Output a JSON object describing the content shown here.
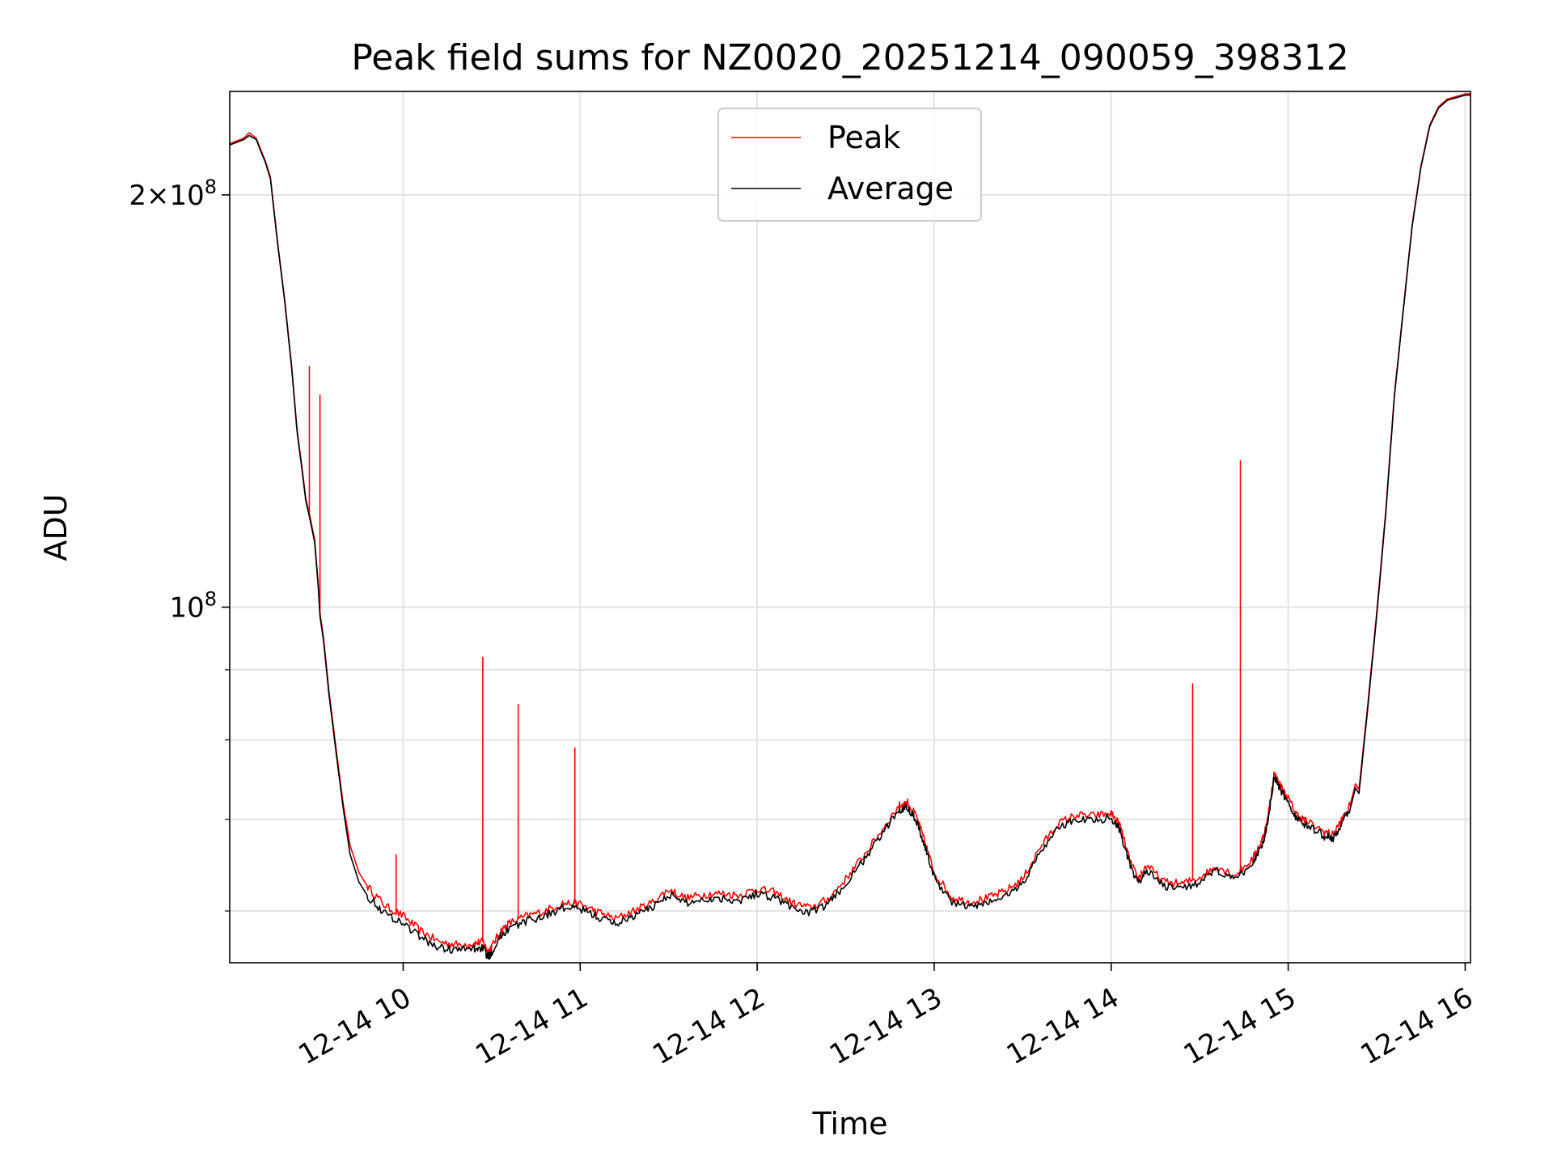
{
  "chart_data": {
    "type": "line",
    "title": "Peak field sums for NZ0020_20251214_090059_398312",
    "xlabel": "Time",
    "ylabel": "ADU",
    "yscale": "log",
    "xlim": [
      9.02,
      16.03
    ],
    "ylim": [
      55000000,
      238000000
    ],
    "grid": true,
    "legend_position": "upper center",
    "x_unit": "hours on 2025-12-14",
    "x_ticks": [
      10,
      11,
      12,
      13,
      14,
      15,
      16
    ],
    "x_tick_labels": [
      "12-14 10",
      "12-14 11",
      "12-14 12",
      "12-14 13",
      "12-14 14",
      "12-14 15",
      "12-14 16"
    ],
    "y_major_ticks": [
      {
        "value": 100000000,
        "base": "10",
        "exp": "8"
      },
      {
        "value": 200000000,
        "base": "2×10",
        "exp": "8"
      }
    ],
    "y_minor_ticks": [
      60000000,
      70000000,
      80000000,
      90000000
    ],
    "series": [
      {
        "name": "Peak",
        "color": "#ff0000",
        "x": [
          9.02,
          9.06,
          9.1,
          9.13,
          9.17,
          9.2,
          9.22,
          9.25,
          9.29,
          9.33,
          9.37,
          9.4,
          9.43,
          9.45,
          9.47,
          9.5,
          9.52,
          9.53,
          9.55,
          9.58,
          9.62,
          9.66,
          9.7,
          9.75,
          9.8,
          9.9,
          10.0,
          10.1,
          10.2,
          10.3,
          10.4,
          10.45,
          10.48,
          10.5,
          10.55,
          10.6,
          10.7,
          10.8,
          10.9,
          11.0,
          11.1,
          11.2,
          11.3,
          11.4,
          11.5,
          11.6,
          11.7,
          11.8,
          11.9,
          12.0,
          12.1,
          12.2,
          12.3,
          12.4,
          12.5,
          12.6,
          12.7,
          12.8,
          12.85,
          12.9,
          12.95,
          13.0,
          13.1,
          13.2,
          13.3,
          13.4,
          13.5,
          13.6,
          13.7,
          13.8,
          13.9,
          14.0,
          14.05,
          14.1,
          14.15,
          14.2,
          14.3,
          14.4,
          14.5,
          14.6,
          14.7,
          14.8,
          14.85,
          14.88,
          14.92,
          14.95,
          15.0,
          15.05,
          15.1,
          15.2,
          15.25,
          15.3,
          15.35,
          15.38,
          15.4,
          15.45,
          15.5,
          15.55,
          15.6,
          15.65,
          15.7,
          15.75,
          15.8,
          15.85,
          15.9,
          15.95,
          16.0,
          16.03
        ],
        "values": [
          218000000,
          219000000,
          220000000,
          222000000,
          220000000,
          215000000,
          212000000,
          206000000,
          185000000,
          168000000,
          150000000,
          135000000,
          126000000,
          120000000,
          117000000,
          112000000,
          104000000,
          99000000,
          95000000,
          87000000,
          79000000,
          72000000,
          67000000,
          64000000,
          62500000,
          60500000,
          59500000,
          58000000,
          57000000,
          56700000,
          56800000,
          57000000,
          56000000,
          56500000,
          58000000,
          58800000,
          59500000,
          60000000,
          60800000,
          60700000,
          59900000,
          59200000,
          60000000,
          60800000,
          62200000,
          61300000,
          61700000,
          61800000,
          61600000,
          62300000,
          61900000,
          60800000,
          60300000,
          61200000,
          63300000,
          65800000,
          68600000,
          71600000,
          72000000,
          70300000,
          67200000,
          64000000,
          61400000,
          60900000,
          61300000,
          62000000,
          63300000,
          66800000,
          69500000,
          70500000,
          70400000,
          70700000,
          69300000,
          65600000,
          63300000,
          64800000,
          63000000,
          62800000,
          63500000,
          64700000,
          63700000,
          65500000,
          67500000,
          69500000,
          75600000,
          74300000,
          72500000,
          70500000,
          69800000,
          68600000,
          68200000,
          69800000,
          71700000,
          74300000,
          73600000,
          85000000,
          99000000,
          117000000,
          143000000,
          165000000,
          190000000,
          210000000,
          225000000,
          232000000,
          235000000,
          236000000,
          237000000,
          237000000
        ],
        "spikes": [
          {
            "x": 9.47,
            "value": 150000000
          },
          {
            "x": 9.53,
            "value": 143000000
          },
          {
            "x": 9.96,
            "value": 66000000
          },
          {
            "x": 10.45,
            "value": 92000000
          },
          {
            "x": 10.65,
            "value": 85000000
          },
          {
            "x": 10.97,
            "value": 79000000
          },
          {
            "x": 14.46,
            "value": 88000000
          },
          {
            "x": 14.73,
            "value": 128000000
          }
        ]
      },
      {
        "name": "Average",
        "color": "#000000",
        "x": [
          9.02,
          9.06,
          9.1,
          9.13,
          9.17,
          9.2,
          9.22,
          9.25,
          9.29,
          9.33,
          9.37,
          9.4,
          9.43,
          9.45,
          9.47,
          9.5,
          9.52,
          9.53,
          9.55,
          9.58,
          9.62,
          9.66,
          9.7,
          9.75,
          9.8,
          9.9,
          10.0,
          10.1,
          10.2,
          10.3,
          10.4,
          10.45,
          10.48,
          10.5,
          10.55,
          10.6,
          10.7,
          10.8,
          10.9,
          11.0,
          11.1,
          11.2,
          11.3,
          11.4,
          11.5,
          11.6,
          11.7,
          11.8,
          11.9,
          12.0,
          12.1,
          12.2,
          12.3,
          12.4,
          12.5,
          12.6,
          12.7,
          12.8,
          12.85,
          12.9,
          12.95,
          13.0,
          13.1,
          13.2,
          13.3,
          13.4,
          13.5,
          13.6,
          13.7,
          13.8,
          13.9,
          14.0,
          14.05,
          14.1,
          14.15,
          14.2,
          14.3,
          14.4,
          14.5,
          14.6,
          14.7,
          14.8,
          14.85,
          14.88,
          14.92,
          14.95,
          15.0,
          15.05,
          15.1,
          15.2,
          15.25,
          15.3,
          15.35,
          15.38,
          15.4,
          15.45,
          15.5,
          15.55,
          15.6,
          15.65,
          15.7,
          15.75,
          15.8,
          15.85,
          15.9,
          15.95,
          16.0,
          16.03
        ],
        "values": [
          217500000,
          218500000,
          219500000,
          221000000,
          219500000,
          214500000,
          211500000,
          205500000,
          184500000,
          167500000,
          149500000,
          134500000,
          125500000,
          119500000,
          116500000,
          111500000,
          103500000,
          98500000,
          94500000,
          86500000,
          78500000,
          71500000,
          66000000,
          63000000,
          61500000,
          59700000,
          58800000,
          57400000,
          56400000,
          56200000,
          56300000,
          56400000,
          55500000,
          56000000,
          57500000,
          58300000,
          59000000,
          59500000,
          60300000,
          60200000,
          59400000,
          58700000,
          59500000,
          60300000,
          61700000,
          60800000,
          61200000,
          61300000,
          61100000,
          61800000,
          61400000,
          60300000,
          59800000,
          60700000,
          62800000,
          65300000,
          68100000,
          71100000,
          71500000,
          69800000,
          66700000,
          63500000,
          60900000,
          60400000,
          60800000,
          61500000,
          62800000,
          66300000,
          69000000,
          70000000,
          69900000,
          70200000,
          68800000,
          65100000,
          62800000,
          64300000,
          62500000,
          62300000,
          63000000,
          64200000,
          63200000,
          65000000,
          67000000,
          69000000,
          75100000,
          73800000,
          72000000,
          70000000,
          69300000,
          68100000,
          67700000,
          69300000,
          71200000,
          73800000,
          73100000,
          84500000,
          98500000,
          116500000,
          142500000,
          164500000,
          189500000,
          209500000,
          224500000,
          231500000,
          234500000,
          235500000,
          236500000,
          236500000
        ]
      }
    ]
  }
}
